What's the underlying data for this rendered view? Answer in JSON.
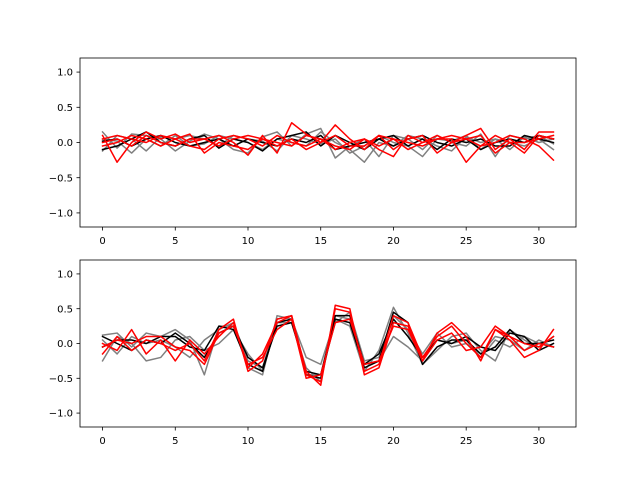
{
  "chart_data": [
    {
      "type": "line",
      "xlim": [
        -1.55,
        32.55
      ],
      "ylim": [
        -1.2,
        1.2
      ],
      "xticks": [
        0,
        5,
        10,
        15,
        20,
        25,
        30
      ],
      "xtick_labels": [
        "0",
        "5",
        "10",
        "15",
        "20",
        "25",
        "30"
      ],
      "yticks": [
        1.0,
        0.5,
        0.0,
        -0.5,
        -1.0
      ],
      "ytick_labels": [
        "1.0",
        "0.5",
        "0.0",
        "−0.5",
        "−1.0"
      ],
      "grid": false,
      "x": [
        0,
        1,
        2,
        3,
        4,
        5,
        6,
        7,
        8,
        9,
        10,
        11,
        12,
        13,
        14,
        15,
        16,
        17,
        18,
        19,
        20,
        21,
        22,
        23,
        24,
        25,
        26,
        27,
        28,
        29,
        30,
        31
      ],
      "series": [
        {
          "color": "#808080",
          "values": [
            0.15,
            -0.08,
            0.12,
            0.1,
            0.05,
            -0.12,
            0.02,
            0.12,
            0.05,
            -0.1,
            -0.15,
            0.08,
            0.15,
            -0.05,
            0.12,
            0.2,
            -0.22,
            -0.05,
            0.05,
            -0.2,
            0.1,
            0.05,
            -0.1,
            0.1,
            0.0,
            -0.05,
            0.12,
            -0.2,
            0.1,
            0.05,
            0.1,
            -0.02
          ]
        },
        {
          "color": "#808080",
          "values": [
            0.05,
            0.02,
            -0.15,
            0.05,
            -0.05,
            0.1,
            -0.05,
            -0.02,
            0.1,
            0.05,
            0.0,
            -0.1,
            0.05,
            0.0,
            -0.05,
            0.15,
            0.0,
            -0.1,
            -0.28,
            0.0,
            -0.05,
            0.1,
            0.05,
            -0.05,
            -0.12,
            0.08,
            0.0,
            0.05,
            -0.1,
            0.08,
            0.0,
            0.05
          ]
        },
        {
          "color": "#808080",
          "values": [
            -0.12,
            0.1,
            0.05,
            -0.12,
            0.08,
            0.05,
            0.1,
            0.05,
            -0.05,
            0.1,
            0.05,
            0.02,
            -0.12,
            0.1,
            0.05,
            -0.02,
            0.05,
            -0.15,
            -0.05,
            0.1,
            0.0,
            -0.05,
            -0.2,
            0.05,
            0.02,
            0.1,
            -0.1,
            0.05,
            0.0,
            -0.05,
            0.05,
            -0.1
          ]
        },
        {
          "color": "#000000",
          "values": [
            -0.1,
            -0.05,
            0.05,
            0.15,
            0.0,
            -0.05,
            0.05,
            0.1,
            -0.08,
            0.05,
            0.0,
            -0.12,
            0.05,
            0.1,
            0.15,
            -0.05,
            0.1,
            0.0,
            -0.1,
            0.05,
            0.1,
            -0.05,
            0.05,
            -0.1,
            0.05,
            0.0,
            0.05,
            -0.05,
            -0.05,
            0.1,
            0.05,
            0.0
          ]
        },
        {
          "color": "#000000",
          "values": [
            0.02,
            0.05,
            -0.05,
            0.05,
            0.1,
            0.0,
            -0.05,
            0.0,
            0.05,
            -0.05,
            0.05,
            0.0,
            -0.05,
            0.05,
            0.0,
            0.1,
            -0.1,
            -0.05,
            0.0,
            0.05,
            -0.05,
            0.05,
            0.1,
            0.0,
            -0.05,
            0.05,
            -0.1,
            0.0,
            0.05,
            0.0,
            0.1,
            0.05
          ]
        },
        {
          "color": "#ff0000",
          "values": [
            0.1,
            -0.28,
            0.0,
            0.15,
            0.05,
            0.12,
            0.0,
            0.05,
            0.1,
            0.0,
            -0.18,
            0.1,
            -0.15,
            0.28,
            0.12,
            0.0,
            0.25,
            0.05,
            -0.1,
            0.1,
            -0.1,
            0.05,
            0.1,
            -0.15,
            0.0,
            0.1,
            0.2,
            -0.1,
            0.05,
            -0.1,
            0.15,
            0.15
          ]
        },
        {
          "color": "#ff0000",
          "values": [
            -0.05,
            0.0,
            0.1,
            0.05,
            -0.05,
            0.05,
            -0.05,
            -0.1,
            0.05,
            0.1,
            0.05,
            -0.05,
            0.1,
            0.0,
            -0.05,
            0.05,
            -0.1,
            0.0,
            0.05,
            -0.05,
            0.05,
            -0.1,
            0.0,
            0.05,
            0.05,
            -0.28,
            -0.05,
            0.0,
            0.1,
            0.05,
            -0.05,
            -0.25
          ]
        },
        {
          "color": "#ff0000",
          "values": [
            0.05,
            0.1,
            0.05,
            0.0,
            0.1,
            0.05,
            0.12,
            -0.15,
            0.0,
            -0.05,
            -0.1,
            0.05,
            0.0,
            -0.05,
            0.1,
            0.05,
            -0.05,
            -0.1,
            0.05,
            -0.1,
            -0.2,
            0.1,
            0.0,
            0.1,
            0.0,
            0.05,
            0.1,
            -0.15,
            0.0,
            0.0,
            0.05,
            0.1
          ]
        },
        {
          "color": "#ff0000",
          "values": [
            0.0,
            0.05,
            -0.05,
            0.1,
            0.0,
            -0.05,
            0.05,
            0.05,
            -0.05,
            0.05,
            0.1,
            0.05,
            -0.05,
            0.05,
            -0.1,
            0.0,
            0.1,
            -0.05,
            -0.05,
            0.1,
            0.05,
            0.0,
            -0.05,
            0.05,
            0.1,
            0.05,
            -0.05,
            0.1,
            0.0,
            -0.15,
            0.1,
            0.05
          ]
        }
      ]
    },
    {
      "type": "line",
      "xlim": [
        -1.55,
        32.55
      ],
      "ylim": [
        -1.2,
        1.2
      ],
      "xticks": [
        0,
        5,
        10,
        15,
        20,
        25,
        30
      ],
      "xtick_labels": [
        "0",
        "5",
        "10",
        "15",
        "20",
        "25",
        "30"
      ],
      "yticks": [
        1.0,
        0.5,
        0.0,
        -0.5,
        -1.0
      ],
      "ytick_labels": [
        "1.0",
        "0.5",
        "0.0",
        "−0.5",
        "−1.0"
      ],
      "grid": false,
      "x": [
        0,
        1,
        2,
        3,
        4,
        5,
        6,
        7,
        8,
        9,
        10,
        11,
        12,
        13,
        14,
        15,
        16,
        17,
        18,
        19,
        20,
        21,
        22,
        23,
        24,
        25,
        26,
        27,
        28,
        29,
        30,
        31
      ],
      "series": [
        {
          "color": "#808080",
          "values": [
            0.12,
            0.15,
            -0.05,
            0.15,
            0.1,
            0.2,
            0.05,
            -0.45,
            0.25,
            0.25,
            -0.35,
            -0.45,
            0.4,
            0.35,
            -0.2,
            -0.3,
            0.35,
            0.25,
            -0.4,
            -0.1,
            0.52,
            0.15,
            -0.3,
            -0.1,
            0.1,
            0.15,
            -0.1,
            -0.25,
            0.2,
            0.05,
            -0.05,
            0.1
          ]
        },
        {
          "color": "#808080",
          "values": [
            -0.25,
            0.1,
            0.0,
            -0.25,
            -0.2,
            0.05,
            0.1,
            -0.1,
            0.0,
            0.2,
            -0.15,
            -0.4,
            0.3,
            0.3,
            -0.35,
            -0.55,
            0.4,
            0.35,
            -0.3,
            -0.25,
            0.1,
            -0.05,
            -0.25,
            0.05,
            0.0,
            0.05,
            -0.2,
            0.05,
            -0.05,
            0.1,
            0.0,
            -0.05
          ]
        },
        {
          "color": "#808080",
          "values": [
            0.05,
            -0.15,
            0.1,
            0.0,
            0.05,
            -0.05,
            -0.2,
            0.05,
            0.2,
            0.3,
            -0.25,
            -0.35,
            0.35,
            0.4,
            -0.45,
            -0.45,
            0.3,
            0.45,
            -0.25,
            -0.2,
            0.4,
            0.2,
            -0.15,
            0.15,
            -0.05,
            0.0,
            -0.15,
            0.1,
            0.05,
            -0.1,
            0.05,
            -0.05
          ]
        },
        {
          "color": "#000000",
          "values": [
            -0.05,
            0.05,
            0.05,
            0.0,
            0.1,
            0.1,
            -0.05,
            -0.1,
            0.25,
            0.2,
            -0.3,
            -0.4,
            0.3,
            0.35,
            -0.45,
            -0.5,
            0.35,
            0.3,
            -0.35,
            -0.25,
            0.45,
            0.3,
            -0.3,
            -0.05,
            0.05,
            0.05,
            -0.15,
            -0.05,
            0.2,
            0.0,
            0.0,
            0.05
          ]
        },
        {
          "color": "#000000",
          "values": [
            0.1,
            0.0,
            -0.1,
            0.05,
            0.0,
            0.15,
            0.0,
            -0.2,
            0.15,
            0.25,
            -0.2,
            -0.35,
            0.25,
            0.3,
            -0.4,
            -0.45,
            0.4,
            0.4,
            -0.3,
            -0.15,
            0.35,
            0.1,
            -0.2,
            0.05,
            0.0,
            0.1,
            -0.05,
            -0.1,
            0.15,
            0.1,
            -0.1,
            0.0
          ]
        },
        {
          "color": "#ff0000",
          "values": [
            -0.15,
            0.1,
            -0.1,
            0.05,
            0.0,
            -0.1,
            0.0,
            -0.25,
            0.2,
            0.35,
            -0.4,
            -0.25,
            0.35,
            0.4,
            -0.45,
            -0.55,
            0.5,
            0.45,
            -0.4,
            -0.3,
            0.4,
            0.3,
            -0.2,
            0.1,
            0.25,
            0.0,
            -0.2,
            0.2,
            0.05,
            -0.2,
            -0.1,
            0.2
          ]
        },
        {
          "color": "#ff0000",
          "values": [
            0.0,
            -0.1,
            0.2,
            -0.15,
            0.05,
            -0.25,
            0.05,
            -0.15,
            0.1,
            0.3,
            -0.35,
            -0.15,
            0.3,
            0.4,
            -0.4,
            -0.6,
            0.55,
            0.5,
            -0.45,
            -0.35,
            0.3,
            0.25,
            -0.25,
            0.15,
            0.3,
            0.1,
            -0.25,
            0.2,
            0.1,
            -0.1,
            0.0,
            -0.05
          ]
        },
        {
          "color": "#ff0000",
          "values": [
            -0.05,
            0.05,
            0.0,
            0.1,
            0.1,
            -0.05,
            -0.1,
            -0.3,
            0.15,
            0.25,
            -0.3,
            -0.2,
            0.2,
            0.35,
            -0.5,
            -0.45,
            0.3,
            0.35,
            -0.3,
            -0.25,
            0.25,
            0.2,
            -0.25,
            0.05,
            0.15,
            -0.1,
            -0.05,
            0.25,
            0.1,
            0.0,
            -0.05,
            0.1
          ]
        }
      ]
    }
  ]
}
